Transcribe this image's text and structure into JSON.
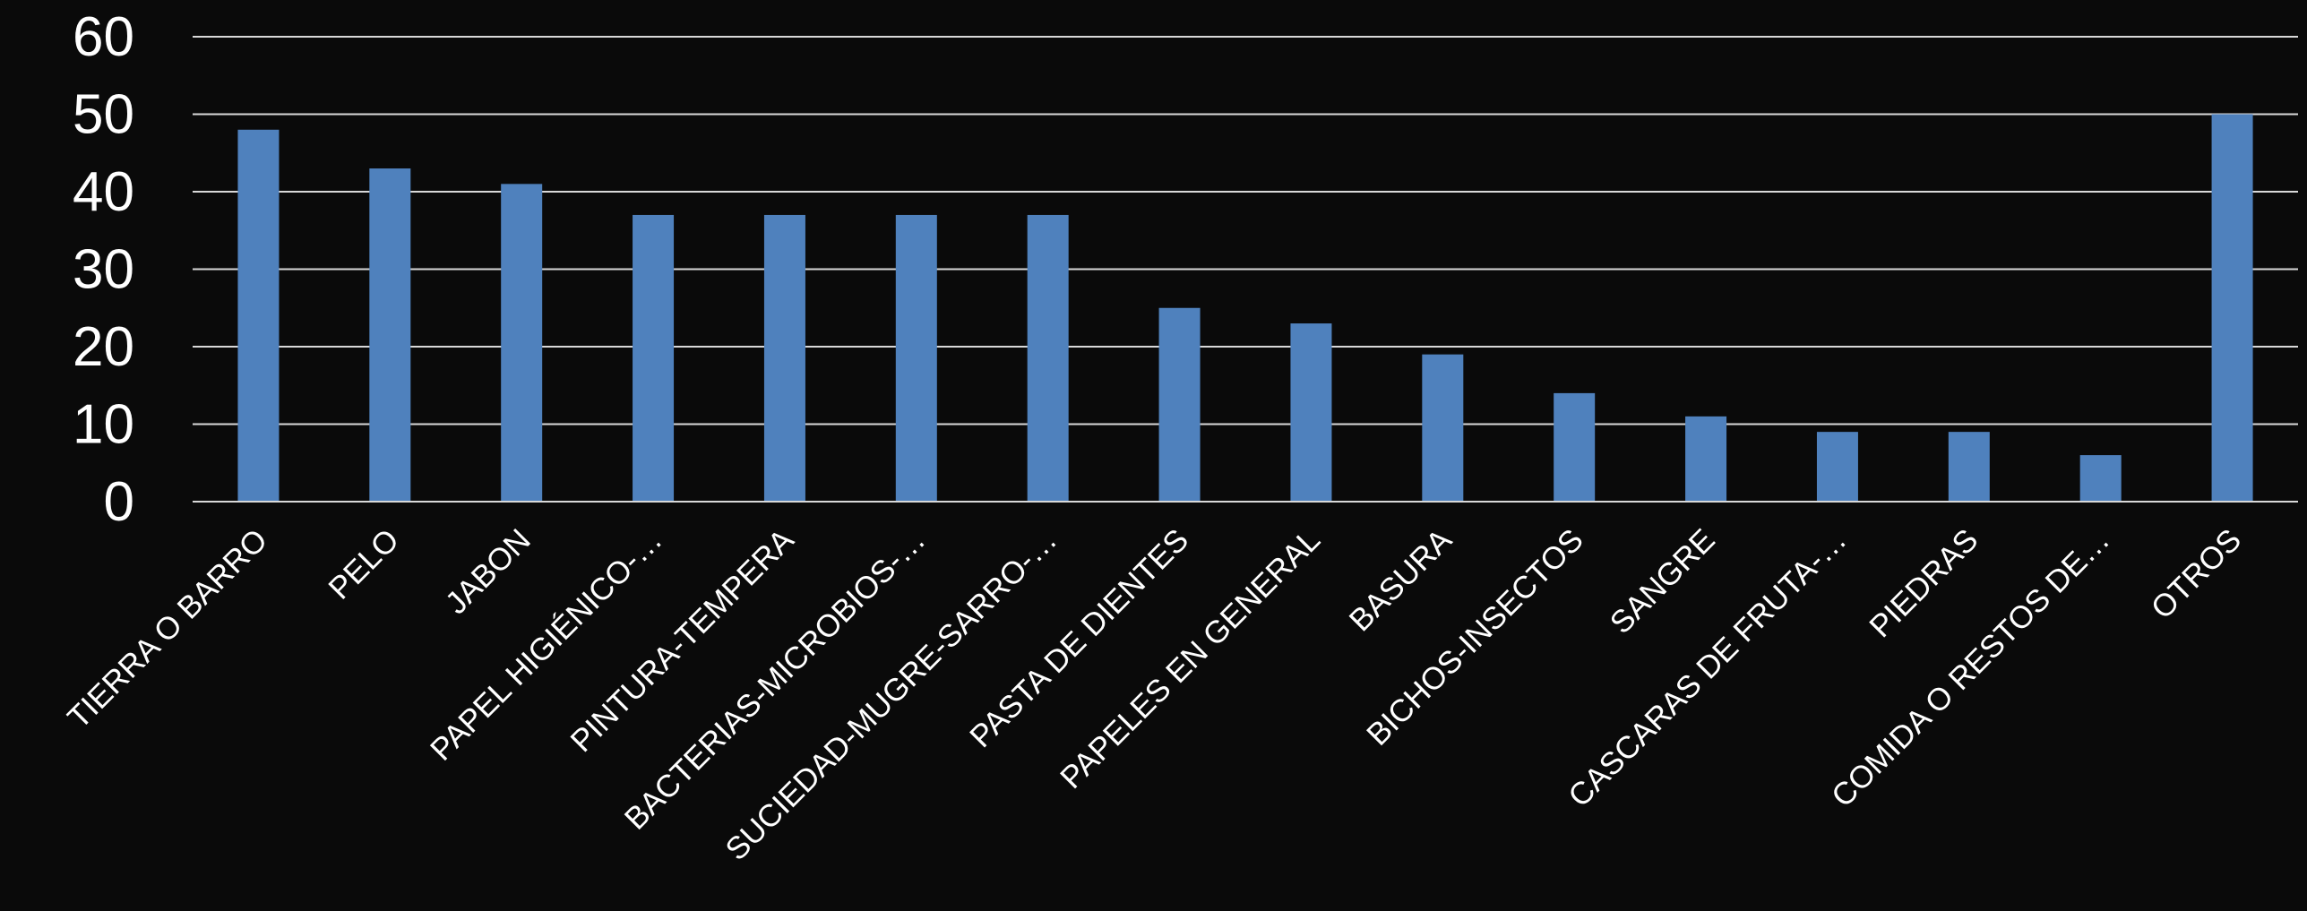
{
  "chart_data": {
    "type": "bar",
    "title": "",
    "xlabel": "",
    "ylabel": "",
    "ylim": [
      0,
      60
    ],
    "yticks": [
      0,
      10,
      20,
      30,
      40,
      50,
      60
    ],
    "grid": true,
    "bar_color": "#4f81bd",
    "categories": [
      "TIERRA O BARRO",
      "PELO",
      "JABON",
      "PAPEL HIGIÉNICO-…",
      "PINTURA-TEMPERA",
      "BACTERIAS-MICROBIOS-…",
      "SUCIEDAD-MUGRE-SARRO-…",
      "PASTA DE DIENTES",
      "PAPELES EN GENERAL",
      "BASURA",
      "BICHOS-INSECTOS",
      "SANGRE",
      "CASCARAS DE FRUTA-…",
      "PIEDRAS",
      "COMIDA O RESTOS DE…",
      "OTROS"
    ],
    "values": [
      48,
      43,
      41,
      37,
      37,
      37,
      37,
      25,
      23,
      19,
      14,
      11,
      9,
      9,
      6,
      50
    ]
  }
}
